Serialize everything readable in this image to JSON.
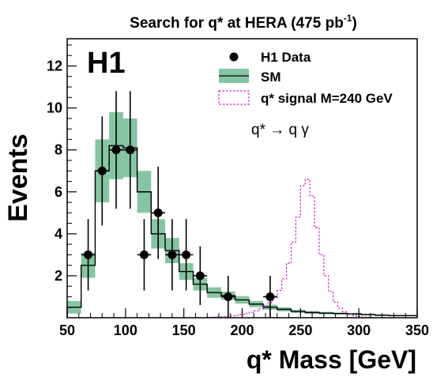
{
  "chart_data": {
    "type": "histogram",
    "title": "Search for q* at HERA (475 pb",
    "title_exponent": "-1",
    "title_close": ")",
    "xlabel": "q* Mass [GeV]",
    "ylabel": "Events",
    "badge": "H1",
    "process_label": "q* → q γ",
    "xlim": [
      50,
      350
    ],
    "ylim": [
      0,
      13.3
    ],
    "x_ticks": [
      "50",
      "100",
      "150",
      "200",
      "250",
      "300",
      "350"
    ],
    "y_ticks": [
      "2",
      "4",
      "6",
      "8",
      "10",
      "12"
    ],
    "legend": {
      "placement": "top-right",
      "data_label": "H1 Data",
      "sm_label": "SM",
      "signal_label": "q* signal M=240 GeV"
    },
    "colors": {
      "sm_band": "#86c5a3",
      "signal": "#cc22cc",
      "line": "#000000"
    },
    "sm": {
      "bin_width": 12,
      "bin_start": 50,
      "values": [
        0.5,
        2.5,
        7.0,
        8.2,
        8.1,
        6.0,
        4.0,
        3.2,
        2.2,
        1.6,
        1.2,
        1.05,
        0.85,
        0.65,
        0.5,
        0.4,
        0.3,
        0.25,
        0.22,
        0.2,
        0.18,
        0.15,
        0.12,
        0.1,
        0.1
      ],
      "uncertainty": [
        0.3,
        0.6,
        1.5,
        1.6,
        1.4,
        1.0,
        0.7,
        0.6,
        0.4,
        0.3,
        0.25,
        0.2,
        0.18,
        0.15,
        0.12,
        0.1,
        0.08,
        0.07,
        0.06,
        0.05,
        0.05,
        0.04,
        0.04,
        0.03,
        0.03
      ]
    },
    "data_points": {
      "x": [
        68,
        80,
        92,
        104,
        116,
        128,
        140,
        152,
        164,
        188,
        224
      ],
      "y": [
        3,
        7,
        8,
        8,
        3,
        5,
        3,
        3,
        2,
        1,
        1
      ],
      "y_err": [
        1.7,
        2.6,
        2.8,
        2.8,
        1.7,
        2.2,
        1.7,
        1.7,
        1.4,
        1.0,
        1.0
      ]
    },
    "signal": {
      "bin_width": 4,
      "bin_start": 170,
      "values": [
        0.02,
        0.03,
        0.04,
        0.05,
        0.07,
        0.09,
        0.12,
        0.15,
        0.2,
        0.26,
        0.33,
        0.42,
        0.55,
        0.72,
        0.95,
        1.3,
        1.85,
        2.6,
        3.6,
        4.8,
        6.3,
        6.6,
        5.8,
        4.3,
        3.0,
        2.0,
        1.25,
        0.75,
        0.45,
        0.28,
        0.17,
        0.1,
        0.06,
        0.03,
        0.02
      ]
    }
  }
}
